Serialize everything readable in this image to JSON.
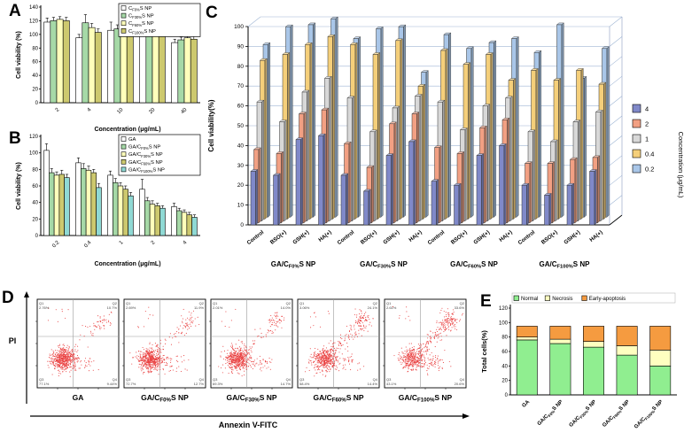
{
  "panels": {
    "a": "A",
    "b": "B",
    "c": "C",
    "d": "D",
    "e": "E"
  },
  "chart_data": [
    {
      "id": "panelA",
      "type": "bar",
      "title": "",
      "xlabel": "Concentration (μg/mL)",
      "ylabel": "Cell viability (%)",
      "ylim": [
        0,
        140
      ],
      "yticks": [
        0,
        20,
        40,
        60,
        80,
        100,
        120,
        140
      ],
      "categories": [
        "2",
        "4",
        "10",
        "20",
        "40"
      ],
      "series": [
        {
          "name": "C~F0%~S NP",
          "color": "#ffffff",
          "values": [
            118,
            95,
            106,
            105,
            88
          ],
          "errors": [
            6,
            5,
            12,
            6,
            5
          ]
        },
        {
          "name": "C~F30%~S NP",
          "color": "#a6d9a7",
          "values": [
            120,
            117,
            108,
            100,
            92
          ],
          "errors": [
            5,
            12,
            6,
            5,
            4
          ]
        },
        {
          "name": "C~F60%~S NP",
          "color": "#ffffbb",
          "values": [
            122,
            110,
            100,
            98,
            95
          ],
          "errors": [
            4,
            6,
            5,
            4,
            6
          ]
        },
        {
          "name": "C~F100%~S NP",
          "color": "#cdc96e",
          "values": [
            120,
            103,
            100,
            97,
            93
          ],
          "errors": [
            5,
            5,
            14,
            4,
            5
          ]
        }
      ]
    },
    {
      "id": "panelB",
      "type": "bar",
      "title": "",
      "xlabel": "Concentration (μg/mL)",
      "ylabel": "Cell viability (%)",
      "ylim": [
        0,
        120
      ],
      "yticks": [
        0,
        20,
        40,
        60,
        80,
        100,
        120
      ],
      "categories": [
        "0.2",
        "0.4",
        "1",
        "2",
        "4"
      ],
      "series": [
        {
          "name": "GA",
          "color": "#ffffff",
          "values": [
            103,
            88,
            73,
            56,
            35
          ],
          "errors": [
            8,
            6,
            5,
            12,
            4
          ]
        },
        {
          "name": "GA/C~F0%~S NP",
          "color": "#a6d9a7",
          "values": [
            76,
            81,
            64,
            42,
            30
          ],
          "errors": [
            5,
            6,
            5,
            4,
            3
          ]
        },
        {
          "name": "GA/C~F30%~S NP",
          "color": "#ffffbb",
          "values": [
            73,
            79,
            60,
            38,
            28
          ],
          "errors": [
            4,
            5,
            4,
            4,
            3
          ]
        },
        {
          "name": "GA/C~F60%~S NP",
          "color": "#cdc96e",
          "values": [
            74,
            76,
            56,
            36,
            25
          ],
          "errors": [
            5,
            4,
            4,
            3,
            3
          ]
        },
        {
          "name": "GA/C~F100%~S NP",
          "color": "#8fd9d4",
          "values": [
            70,
            58,
            48,
            33,
            22
          ],
          "errors": [
            4,
            5,
            4,
            3,
            3
          ]
        }
      ]
    },
    {
      "id": "panelC",
      "type": "bar3d",
      "ylabel": "Cell viability(%)",
      "ylim": [
        0,
        100
      ],
      "yticks": [
        0,
        10,
        20,
        30,
        40,
        50,
        60,
        70,
        80,
        90,
        100
      ],
      "legend_title": "Concentration (μg/mL)",
      "series_labels": [
        "4",
        "2",
        "1",
        "0.4",
        "0.2"
      ],
      "series_colors": [
        "#8089c9",
        "#f2a083",
        "#d8d8d8",
        "#f5cf7a",
        "#a9c6e8"
      ],
      "conditions": [
        "Control",
        "BSO(+)",
        "GSH(+)",
        "HA(+)"
      ],
      "groups": [
        {
          "label": "GA/C~F0%~S NP",
          "values": [
            [
              27,
              37,
              60,
              80,
              87
            ],
            [
              25,
              35,
              50,
              83,
              96
            ],
            [
              43,
              55,
              65,
              88,
              97
            ],
            [
              45,
              57,
              72,
              92,
              100
            ]
          ]
        },
        {
          "label": "GA/C~F30%~S NP",
          "values": [
            [
              25,
              40,
              62,
              88,
              90
            ],
            [
              17,
              28,
              45,
              83,
              95
            ],
            [
              35,
              50,
              57,
              90,
              96
            ],
            [
              42,
              55,
              63,
              67,
              73
            ]
          ]
        },
        {
          "label": "GA/C~F60%~S NP",
          "values": [
            [
              22,
              38,
              60,
              85,
              92
            ],
            [
              20,
              35,
              46,
              78,
              85
            ],
            [
              35,
              48,
              58,
              83,
              88
            ],
            [
              40,
              52,
              62,
              70,
              90
            ]
          ]
        },
        {
          "label": "GA/C~F100%~S NP",
          "values": [
            [
              20,
              30,
              45,
              75,
              83
            ],
            [
              15,
              30,
              40,
              70,
              97
            ],
            [
              20,
              32,
              50,
              75,
              70
            ],
            [
              27,
              33,
              55,
              68,
              85
            ]
          ]
        }
      ]
    },
    {
      "id": "panelD",
      "type": "scatter",
      "xlabel": "Annexin V-FITC",
      "ylabel": "PI",
      "point_color": "#e62020",
      "plots": [
        {
          "label": "GA",
          "quadrants": {
            "Q1": "2.76%",
            "Q2": "10.7%",
            "Q3": "77.1%",
            "Q4": "9.44%"
          }
        },
        {
          "label": "GA/C~F0%~S NP",
          "quadrants": {
            "Q1": "2.69%",
            "Q2": "11.9%",
            "Q3": "72.7%",
            "Q4": "12.7%"
          }
        },
        {
          "label": "GA/C~F30%~S NP",
          "quadrants": {
            "Q1": "2.01%",
            "Q2": "14.0%",
            "Q3": "69.3%",
            "Q4": "14.7%"
          }
        },
        {
          "label": "GA/C~F60%~S NP",
          "quadrants": {
            "Q1": "3.06%",
            "Q2": "24.1%",
            "Q3": "58.4%",
            "Q4": "14.4%"
          }
        },
        {
          "label": "GA/C~F100%~S NP",
          "quadrants": {
            "Q1": "2.61%",
            "Q2": "33.6%",
            "Q3": "43.1%",
            "Q4": "20.6%"
          }
        }
      ]
    },
    {
      "id": "panelE",
      "type": "stacked_bar",
      "ylabel": "Total cells(%)",
      "ylim": [
        0,
        120
      ],
      "yticks": [
        0,
        20,
        40,
        60,
        80,
        100,
        120
      ],
      "categories": [
        "GA",
        "GA/C~F0%~S NP",
        "GA/C~F30%~S NP",
        "GA/C~F60%~S NP",
        "GA/C~F100%~S NP"
      ],
      "series": [
        {
          "name": "Normal",
          "color": "#90ee90",
          "values": [
            76,
            71,
            66,
            55,
            40
          ]
        },
        {
          "name": "Necrosis",
          "color": "#ffffc0",
          "values": [
            4,
            6,
            8,
            13,
            22
          ]
        },
        {
          "name": "Early-apoptosis",
          "color": "#f59b40",
          "values": [
            15,
            18,
            21,
            27,
            33
          ]
        }
      ]
    }
  ]
}
